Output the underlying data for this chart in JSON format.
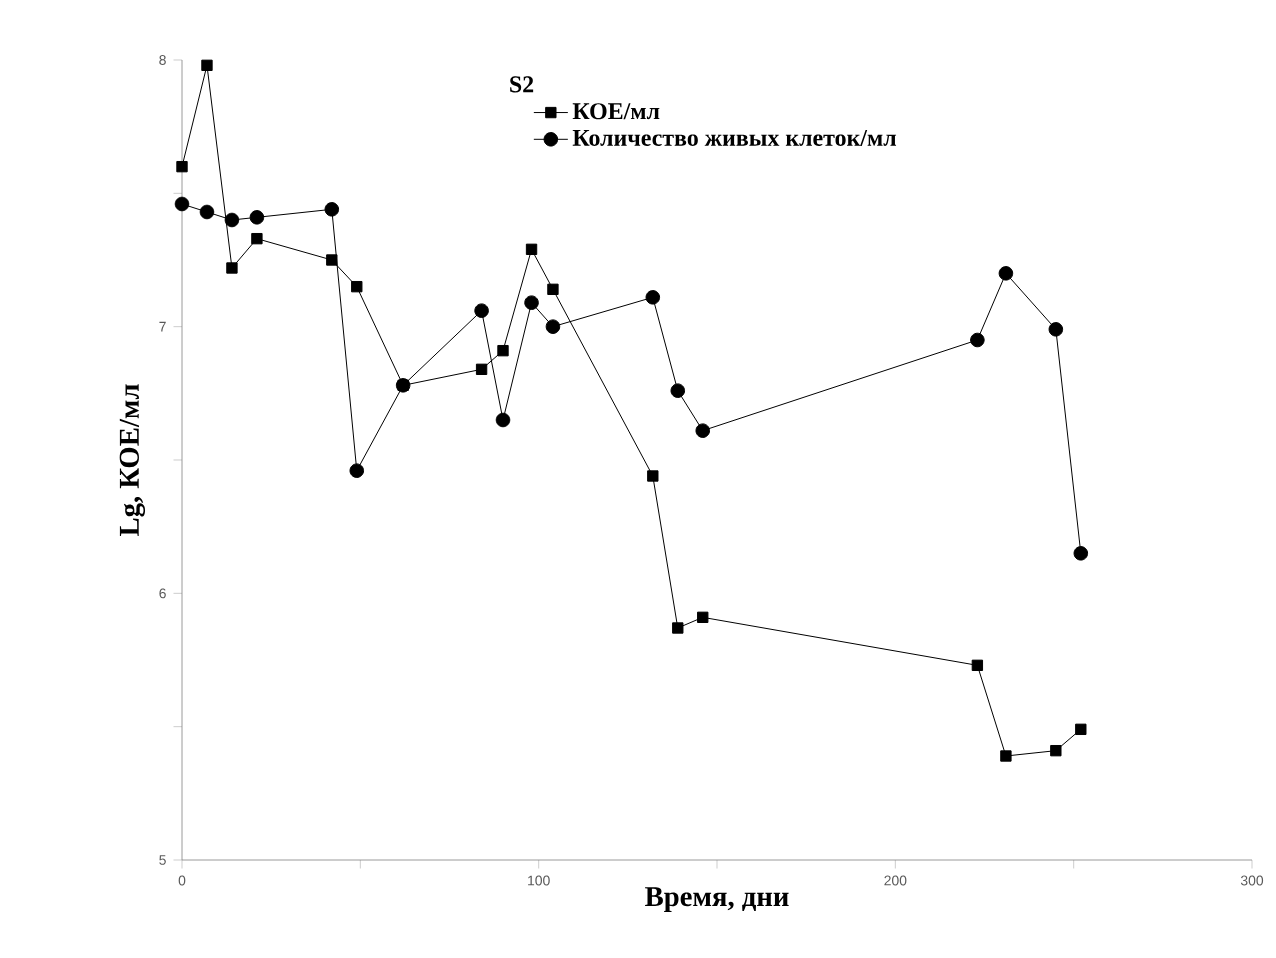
{
  "chart_data": {
    "type": "line",
    "legend_title": "S2",
    "xlabel": "Время, дни",
    "ylabel": "Lg, КОЕ/мл",
    "x": [
      0,
      7,
      14,
      21,
      42,
      49,
      62,
      84,
      90,
      98,
      104,
      132,
      139,
      146,
      223,
      231,
      245,
      252
    ],
    "series": [
      {
        "name": "КОЕ/мл",
        "color": "#000000",
        "marker": "square",
        "values": [
          7.6,
          7.98,
          7.22,
          7.33,
          7.25,
          7.15,
          6.78,
          6.84,
          6.91,
          7.29,
          7.14,
          6.44,
          5.87,
          5.91,
          5.73,
          5.39,
          5.41,
          5.49
        ]
      },
      {
        "name": "Количество живых клеток/мл",
        "color": "#000000",
        "marker": "circle",
        "values": [
          7.46,
          7.43,
          7.4,
          7.41,
          7.44,
          6.46,
          6.78,
          7.06,
          6.65,
          7.09,
          7.0,
          7.11,
          6.76,
          6.61,
          6.95,
          7.2,
          6.99,
          6.15
        ]
      }
    ],
    "xlim": [
      0,
      300
    ],
    "ylim": [
      5,
      8
    ],
    "xticks": [
      0,
      {
        "value": 50,
        "label": null
      },
      100,
      {
        "value": 150,
        "label": null
      },
      200,
      {
        "value": 250,
        "label": null
      },
      300
    ],
    "yticks": [
      5,
      {
        "value": 5.5,
        "label": null
      },
      6,
      {
        "value": 6.5,
        "label": null
      },
      7,
      {
        "value": 7.5,
        "label": null
      },
      8
    ],
    "grid": false,
    "legend": "top",
    "line_style": "solid"
  }
}
